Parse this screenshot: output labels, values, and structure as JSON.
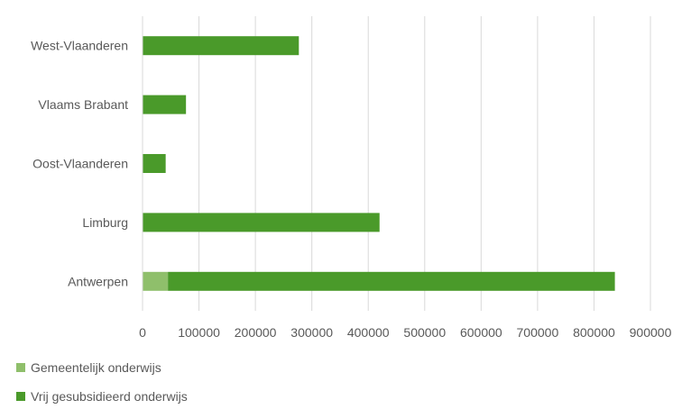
{
  "chart_data": {
    "type": "bar",
    "orientation": "horizontal",
    "stacked": true,
    "categories": [
      "West-Vlaanderen",
      "Vlaams Brabant",
      "Oost-Vlaanderen",
      "Limburg",
      "Antwerpen"
    ],
    "series": [
      {
        "name": "Gemeentelijk onderwijs",
        "color": "#8fbf6b",
        "values": [
          0,
          0,
          0,
          0,
          45000
        ]
      },
      {
        "name": "Vrij gesubsidieerd onderwijs",
        "color": "#4a9a2a",
        "values": [
          277000,
          77000,
          41000,
          420000,
          792000
        ]
      }
    ],
    "xlim": [
      0,
      900000
    ],
    "xticks": [
      "0",
      "100000",
      "200000",
      "300000",
      "400000",
      "500000",
      "600000",
      "700000",
      "800000",
      "900000"
    ],
    "title": "",
    "xlabel": "",
    "ylabel": "",
    "grid": "vertical",
    "legend": "bottom-left"
  }
}
